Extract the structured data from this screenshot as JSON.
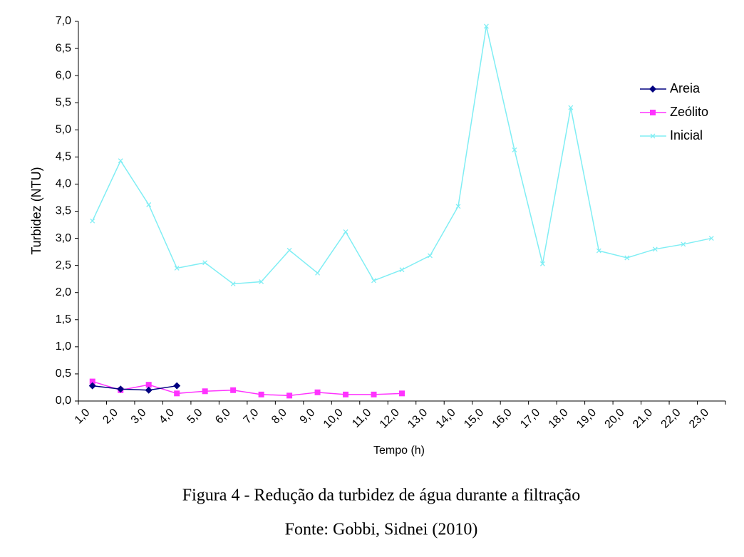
{
  "chart_data": {
    "type": "line",
    "y_label": "Turbidez (NTU)",
    "x_label": "Tempo (h)",
    "categories": [
      "1,0",
      "2,0",
      "3,0",
      "4,0",
      "5,0",
      "6,0",
      "7,0",
      "8,0",
      "9,0",
      "10,0",
      "11,0",
      "12,0",
      "13,0",
      "14,0",
      "15,0",
      "16,0",
      "17,0",
      "18,0",
      "19,0",
      "20,0",
      "21,0",
      "22,0",
      "23,0"
    ],
    "series": [
      {
        "name": "Areia",
        "color": "#000080",
        "marker": "diamond",
        "values": [
          0.28,
          0.22,
          0.2,
          0.28,
          null,
          null,
          null,
          null,
          null,
          null,
          null,
          null,
          null,
          null,
          null,
          null,
          null,
          null,
          null,
          null,
          null,
          null,
          null
        ]
      },
      {
        "name": "Zeólito",
        "color": "#ff33ff",
        "marker": "square",
        "values": [
          0.36,
          0.2,
          0.3,
          0.14,
          0.18,
          0.2,
          0.12,
          0.1,
          0.16,
          0.12,
          0.12,
          0.14,
          null,
          null,
          null,
          null,
          null,
          null,
          null,
          null,
          null,
          null,
          null
        ]
      },
      {
        "name": "Inicial",
        "color": "#80eef4",
        "marker": "x",
        "values": [
          3.32,
          4.43,
          3.62,
          2.45,
          2.55,
          2.16,
          2.2,
          2.78,
          2.36,
          3.12,
          2.22,
          2.42,
          2.68,
          3.59,
          6.91,
          4.63,
          2.53,
          5.41,
          2.77,
          2.64,
          2.8,
          2.89,
          3.0
        ]
      }
    ],
    "ylim": [
      0,
      7
    ],
    "yticks": [
      {
        "value": 0,
        "label": "0,0"
      },
      {
        "value": 0.5,
        "label": "0,5"
      },
      {
        "value": 1,
        "label": "1,0"
      },
      {
        "value": 1.5,
        "label": "1,5"
      },
      {
        "value": 2,
        "label": "2,0"
      },
      {
        "value": 2.5,
        "label": "2,5"
      },
      {
        "value": 3,
        "label": "3,0"
      },
      {
        "value": 3.5,
        "label": "3,5"
      },
      {
        "value": 4,
        "label": "4,0"
      },
      {
        "value": 4.5,
        "label": "4,5"
      },
      {
        "value": 5,
        "label": "5,0"
      },
      {
        "value": 5.5,
        "label": "5,5"
      },
      {
        "value": 6,
        "label": "6,0"
      },
      {
        "value": 6.5,
        "label": "6,5"
      },
      {
        "value": 7,
        "label": "7,0"
      }
    ],
    "grid": false,
    "legend": "right"
  },
  "caption": {
    "figure": "Figura 4 - Redução da turbidez de água durante a filtração",
    "source": "Fonte: Gobbi, Sidnei (2010)"
  }
}
